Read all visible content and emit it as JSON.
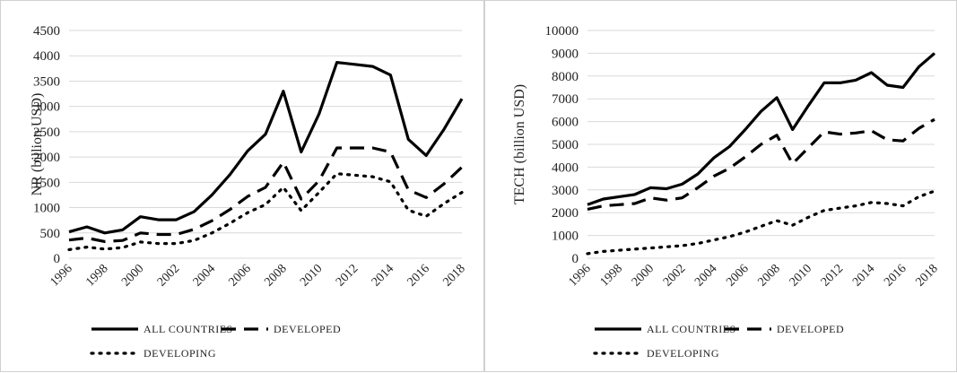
{
  "chart_data": [
    {
      "type": "line",
      "ylabel": "NR (billion USD)",
      "xlabel": "",
      "title": "",
      "ylim": [
        0,
        4500
      ],
      "yticks": [
        0,
        500,
        1000,
        1500,
        2000,
        2500,
        3000,
        3500,
        4000,
        4500
      ],
      "x": [
        1996,
        1997,
        1998,
        1999,
        2000,
        2001,
        2002,
        2003,
        2004,
        2005,
        2006,
        2007,
        2008,
        2009,
        2010,
        2011,
        2012,
        2013,
        2014,
        2015,
        2016,
        2017,
        2018
      ],
      "xtick_labels": [
        "1996",
        "1998",
        "2000",
        "2002",
        "2004",
        "2006",
        "2008",
        "2010",
        "2012",
        "2014",
        "2016",
        "2018"
      ],
      "grid": true,
      "legend_position": "bottom",
      "series": [
        {
          "name": "ALL COUNTRIES",
          "style": "solid",
          "values": [
            520,
            620,
            500,
            560,
            820,
            760,
            760,
            920,
            1250,
            1650,
            2120,
            2450,
            3300,
            2100,
            2850,
            3870,
            3830,
            3790,
            3620,
            2350,
            2030,
            2550,
            3150
          ]
        },
        {
          "name": "DEVELOPED",
          "style": "dashed",
          "values": [
            360,
            400,
            330,
            350,
            500,
            470,
            470,
            570,
            740,
            960,
            1220,
            1400,
            1900,
            1170,
            1530,
            2180,
            2180,
            2180,
            2100,
            1350,
            1200,
            1470,
            1800
          ]
        },
        {
          "name": "DEVELOPING",
          "style": "dotted",
          "values": [
            170,
            220,
            180,
            210,
            320,
            290,
            290,
            350,
            500,
            690,
            900,
            1060,
            1400,
            940,
            1300,
            1670,
            1640,
            1610,
            1510,
            950,
            830,
            1080,
            1300
          ]
        }
      ]
    },
    {
      "type": "line",
      "ylabel": "TECH (billion USD)",
      "xlabel": "",
      "title": "",
      "ylim": [
        0,
        10000
      ],
      "yticks": [
        0,
        1000,
        2000,
        3000,
        4000,
        5000,
        6000,
        7000,
        8000,
        9000,
        10000
      ],
      "x": [
        1996,
        1997,
        1998,
        1999,
        2000,
        2001,
        2002,
        2003,
        2004,
        2005,
        2006,
        2007,
        2008,
        2009,
        2010,
        2011,
        2012,
        2013,
        2014,
        2015,
        2016,
        2017,
        2018
      ],
      "xtick_labels": [
        "1996",
        "1998",
        "2000",
        "2002",
        "2004",
        "2006",
        "2008",
        "2010",
        "2012",
        "2014",
        "2016",
        "2018"
      ],
      "grid": true,
      "legend_position": "bottom",
      "series": [
        {
          "name": "ALL COUNTRIES",
          "style": "solid",
          "values": [
            2350,
            2600,
            2700,
            2800,
            3100,
            3050,
            3250,
            3700,
            4400,
            4900,
            5650,
            6450,
            7050,
            5650,
            6700,
            7700,
            7700,
            7820,
            8150,
            7600,
            7500,
            8400,
            9000
          ]
        },
        {
          "name": "DEVELOPED",
          "style": "dashed",
          "values": [
            2150,
            2300,
            2350,
            2400,
            2650,
            2550,
            2650,
            3100,
            3600,
            3950,
            4450,
            5000,
            5400,
            4150,
            4850,
            5550,
            5450,
            5500,
            5600,
            5200,
            5150,
            5700,
            6100
          ]
        },
        {
          "name": "DEVELOPING",
          "style": "dotted",
          "values": [
            200,
            300,
            350,
            400,
            450,
            500,
            550,
            650,
            800,
            950,
            1150,
            1400,
            1650,
            1450,
            1800,
            2100,
            2200,
            2300,
            2450,
            2400,
            2300,
            2700,
            2950
          ]
        }
      ]
    }
  ]
}
